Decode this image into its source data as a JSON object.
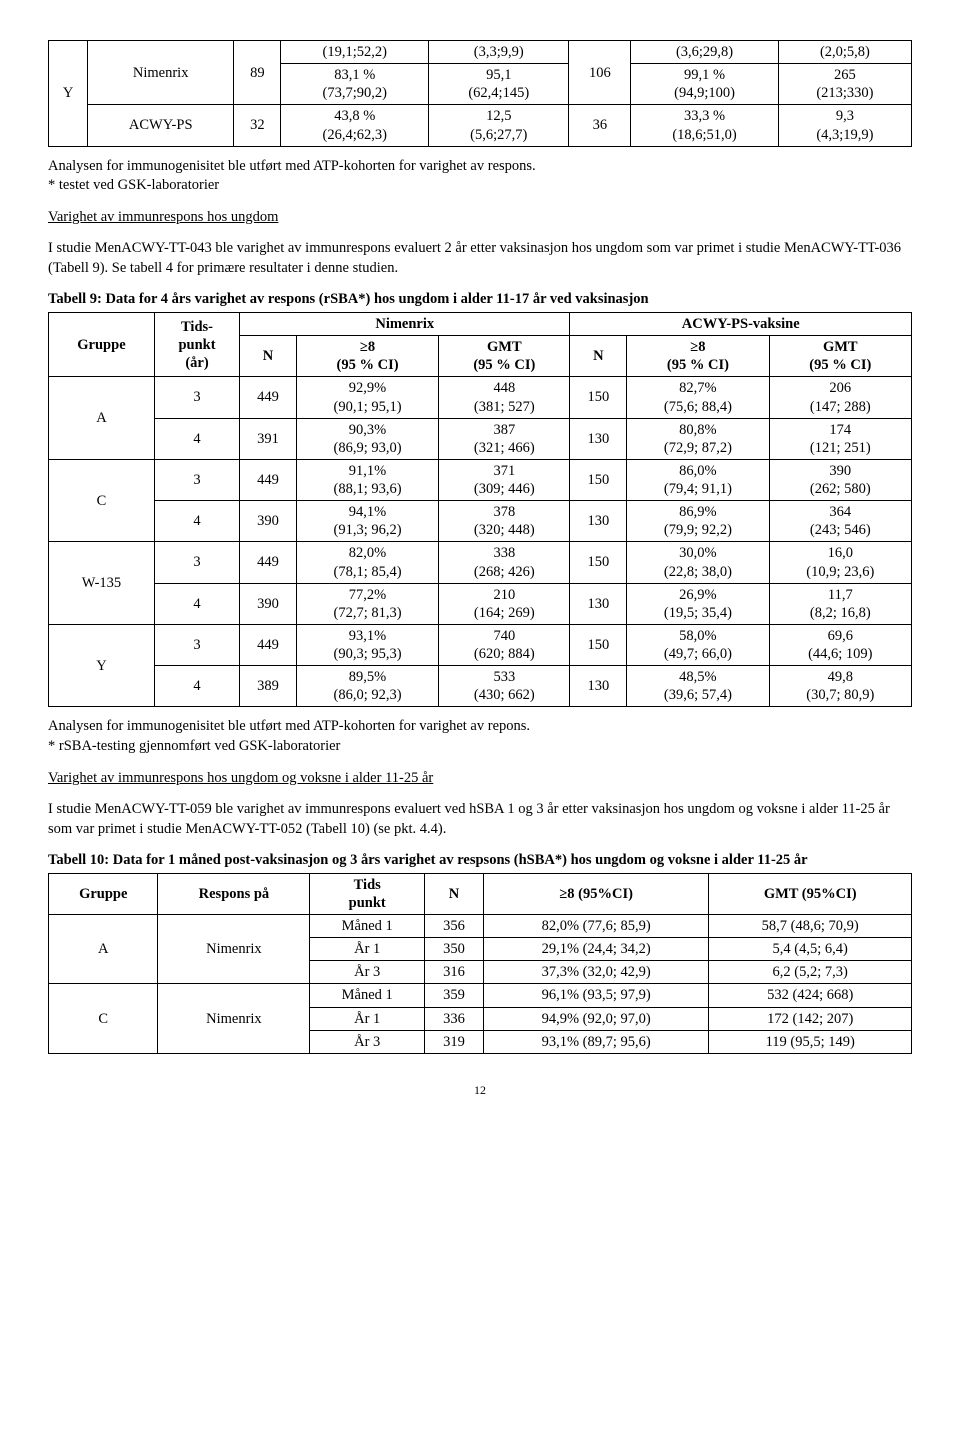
{
  "table_top": {
    "rows": [
      {
        "group": "Y",
        "vaccines": [
          {
            "name": "Nimenrix",
            "n1": "89",
            "cells1": [
              "(19,1;52,2)",
              "83,1 %\n(73,7;90,2)",
              "(3,3;9,9)",
              "95,1\n(62,4;145)"
            ],
            "n2": "106",
            "cells2": [
              "(3,6;29,8)",
              "99,1 %\n(94,9;100)",
              "(2,0;5,8)",
              "265\n(213;330)"
            ]
          },
          {
            "name": "ACWY-PS",
            "n1": "32",
            "cells1": [
              "",
              "43,8 %\n(26,4;62,3)",
              "",
              "12,5\n(5,6;27,7)"
            ],
            "n2": "36",
            "cells2": [
              "",
              "33,3 %\n(18,6;51,0)",
              "",
              "9,3\n(4,3;19,9)"
            ]
          }
        ]
      }
    ],
    "footnote1": "Analysen for immunogenisitet ble utført med ATP-kohorten for varighet av respons.",
    "footnote2": "* testet ved GSK-laboratorier"
  },
  "section1": {
    "heading": "Varighet av immunrespons hos ungdom",
    "para": "I studie MenACWY-TT-043 ble varighet av immunrespons evaluert 2 år etter vaksinasjon hos ungdom som var primet i studie MenACWY-TT-036 (Tabell 9). Se tabell 4 for primære resultater i denne studien."
  },
  "table9": {
    "caption": "Tabell 9: Data for 4 års varighet av respons (rSBA*) hos ungdom i alder 11-17 år ved vaksinasjon",
    "head": {
      "gruppe": "Gruppe",
      "tids": "Tids-\npunkt\n(år)",
      "nimenrix": "Nimenrix",
      "acwy": "ACWY-PS-vaksine",
      "n": "N",
      "ge8": "≥8\n(95 % CI)",
      "gmt": "GMT\n(95 % CI)"
    },
    "body": [
      {
        "g": "A",
        "t": "3",
        "n1": "449",
        "p1": "92,9%\n(90,1; 95,1)",
        "gmt1": "448\n(381; 527)",
        "n2": "150",
        "p2": "82,7%\n(75,6; 88,4)",
        "gmt2": "206\n(147; 288)"
      },
      {
        "g": "",
        "t": "4",
        "n1": "391",
        "p1": "90,3%\n(86,9; 93,0)",
        "gmt1": "387\n(321; 466)",
        "n2": "130",
        "p2": "80,8%\n(72,9; 87,2)",
        "gmt2": "174\n(121; 251)"
      },
      {
        "g": "C",
        "t": "3",
        "n1": "449",
        "p1": "91,1%\n(88,1; 93,6)",
        "gmt1": "371\n(309; 446)",
        "n2": "150",
        "p2": "86,0%\n(79,4; 91,1)",
        "gmt2": "390\n(262; 580)"
      },
      {
        "g": "",
        "t": "4",
        "n1": "390",
        "p1": "94,1%\n(91,3; 96,2)",
        "gmt1": "378\n(320; 448)",
        "n2": "130",
        "p2": "86,9%\n(79,9; 92,2)",
        "gmt2": "364\n(243; 546)"
      },
      {
        "g": "W-135",
        "t": "3",
        "n1": "449",
        "p1": "82,0%\n(78,1; 85,4)",
        "gmt1": "338\n(268; 426)",
        "n2": "150",
        "p2": "30,0%\n(22,8; 38,0)",
        "gmt2": "16,0\n(10,9; 23,6)"
      },
      {
        "g": "",
        "t": "4",
        "n1": "390",
        "p1": "77,2%\n(72,7; 81,3)",
        "gmt1": "210\n(164; 269)",
        "n2": "130",
        "p2": "26,9%\n(19,5; 35,4)",
        "gmt2": "11,7\n(8,2; 16,8)"
      },
      {
        "g": "Y",
        "t": "3",
        "n1": "449",
        "p1": "93,1%\n(90,3; 95,3)",
        "gmt1": "740\n(620; 884)",
        "n2": "150",
        "p2": "58,0%\n(49,7; 66,0)",
        "gmt2": "69,6\n(44,6; 109)"
      },
      {
        "g": "",
        "t": "4",
        "n1": "389",
        "p1": "89,5%\n(86,0; 92,3)",
        "gmt1": "533\n(430; 662)",
        "n2": "130",
        "p2": "48,5%\n(39,6; 57,4)",
        "gmt2": "49,8\n(30,7; 80,9)"
      }
    ],
    "footnote1": "Analysen for immunogenisitet ble utført med ATP-kohorten for varighet av repons.",
    "footnote2": "* rSBA-testing gjennomført ved GSK-laboratorier"
  },
  "section2": {
    "heading": "Varighet av immunrespons hos ungdom og voksne i alder 11-25 år",
    "para": "I studie MenACWY-TT-059 ble varighet av immunrespons evaluert ved hSBA 1 og 3 år etter vaksinasjon hos ungdom og voksne i alder 11-25 år som var primet i studie MenACWY-TT-052 (Tabell 10) (se pkt. 4.4)."
  },
  "table10": {
    "caption": "Tabell 10: Data for 1 måned post-vaksinasjon og 3 års varighet av respsons (hSBA*) hos ungdom og voksne i alder 11-25 år",
    "head": {
      "gruppe": "Gruppe",
      "respons": "Respons på",
      "tids": "Tids\npunkt",
      "n": "N",
      "ge8": "≥8 (95%CI)",
      "gmt": "GMT (95%CI)"
    },
    "body": [
      {
        "g": "A",
        "r": "Nimenrix",
        "t": "Måned 1",
        "n": "356",
        "p": "82,0% (77,6; 85,9)",
        "gmt": "58,7 (48,6; 70,9)"
      },
      {
        "g": "",
        "r": "",
        "t": "År 1",
        "n": "350",
        "p": "29,1% (24,4; 34,2)",
        "gmt": "5,4 (4,5; 6,4)"
      },
      {
        "g": "",
        "r": "",
        "t": "År 3",
        "n": "316",
        "p": "37,3% (32,0; 42,9)",
        "gmt": "6,2 (5,2; 7,3)"
      },
      {
        "g": "C",
        "r": "Nimenrix",
        "t": "Måned 1",
        "n": "359",
        "p": "96,1% (93,5; 97,9)",
        "gmt": "532 (424; 668)"
      },
      {
        "g": "",
        "r": "",
        "t": "År 1",
        "n": "336",
        "p": "94,9% (92,0; 97,0)",
        "gmt": "172 (142; 207)"
      },
      {
        "g": "",
        "r": "",
        "t": "År 3",
        "n": "319",
        "p": "93,1% (89,7; 95,6)",
        "gmt": "119 (95,5; 149)"
      }
    ]
  },
  "page": "12"
}
